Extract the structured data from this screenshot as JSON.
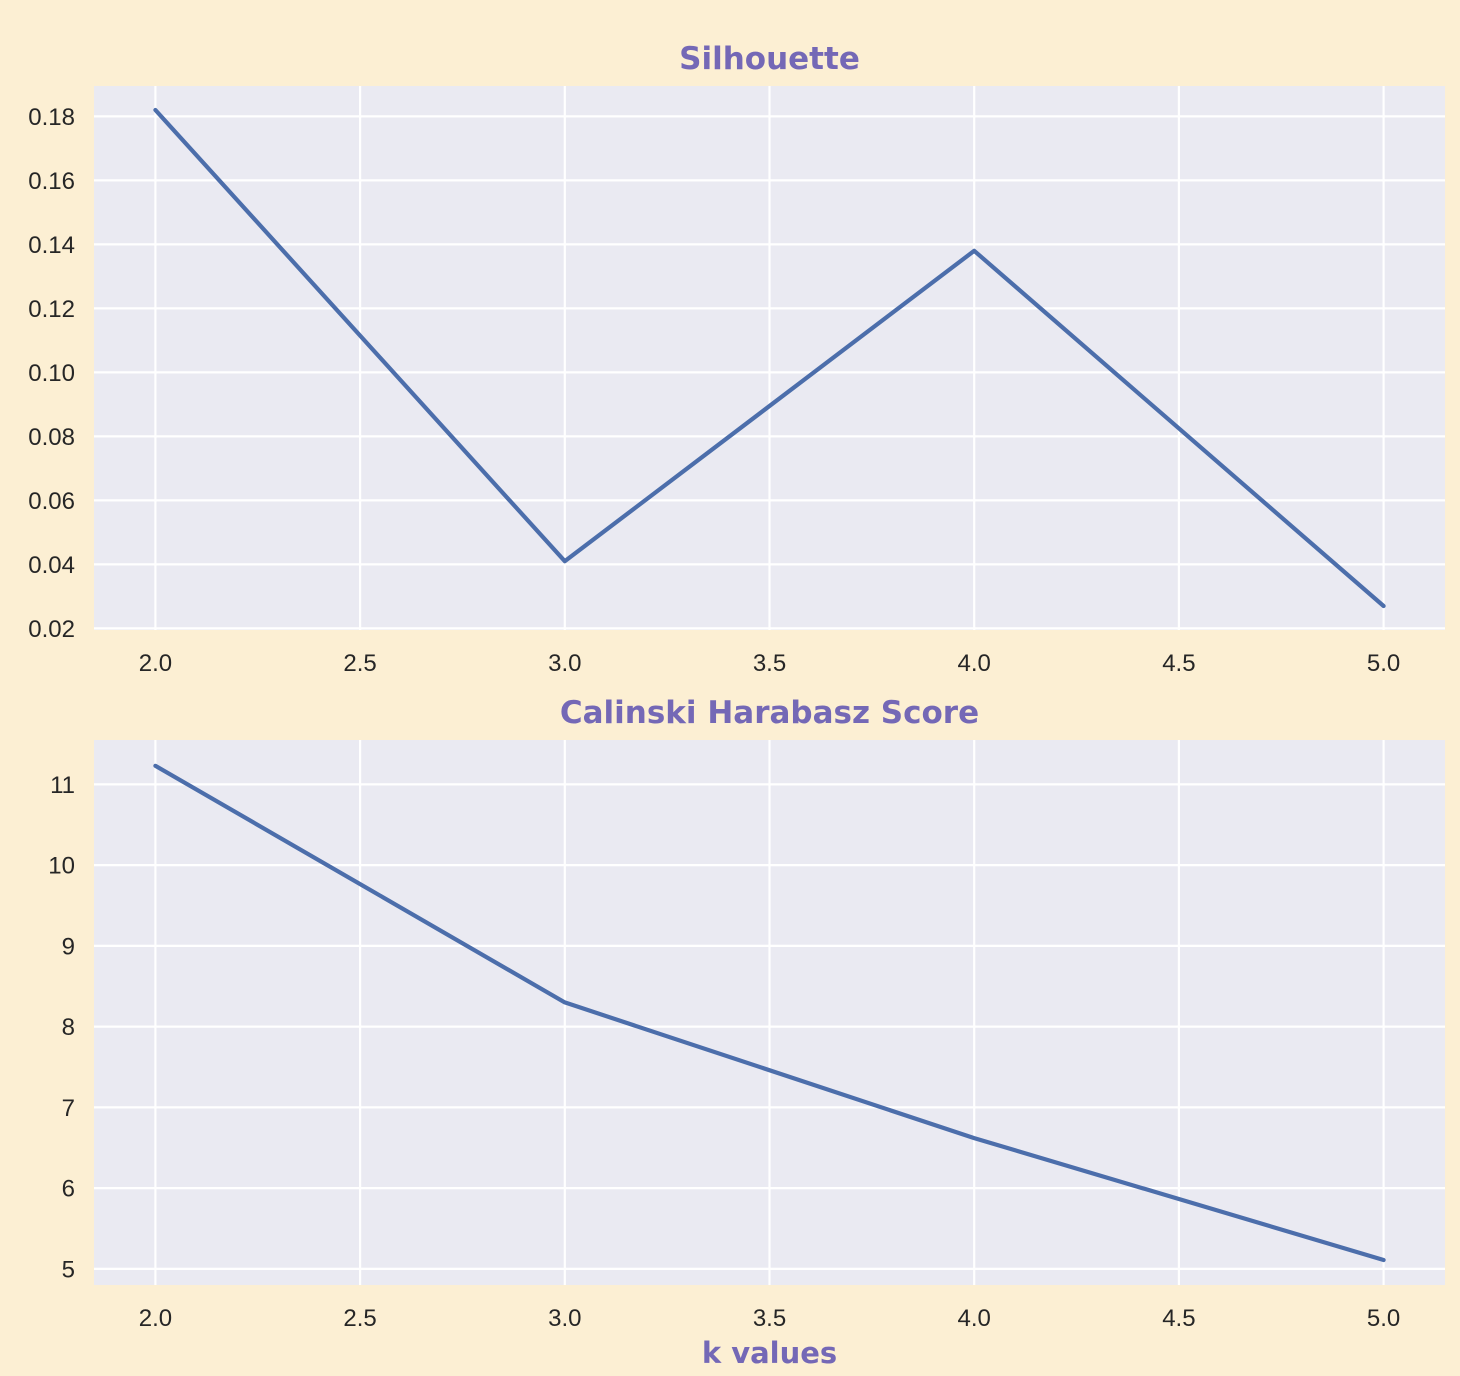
{
  "colors": {
    "figure_background": "#fcefd3",
    "axes_background": "#eaeaf2",
    "grid": "#ffffff",
    "line": "#4c6eab",
    "title": "#7468b6",
    "tick_text": "#262626"
  },
  "chart_data": [
    {
      "type": "line",
      "title": "Silhouette",
      "xlabel": "",
      "ylabel": "",
      "x": [
        2,
        3,
        4,
        5
      ],
      "series": [
        {
          "values": [
            0.182,
            0.041,
            0.138,
            0.027
          ]
        }
      ],
      "xlim": [
        1.85,
        5.15
      ],
      "ylim": [
        0.0195,
        0.1895
      ],
      "xticks": [
        2.0,
        2.5,
        3.0,
        3.5,
        4.0,
        4.5,
        5.0
      ],
      "xtick_labels": [
        "2.0",
        "2.5",
        "3.0",
        "3.5",
        "4.0",
        "4.5",
        "5.0"
      ],
      "yticks": [
        0.02,
        0.04,
        0.06,
        0.08,
        0.1,
        0.12,
        0.14,
        0.16,
        0.18
      ],
      "ytick_labels": [
        "0.02",
        "0.04",
        "0.06",
        "0.08",
        "0.10",
        "0.12",
        "0.14",
        "0.16",
        "0.18"
      ],
      "grid": true,
      "legend": false
    },
    {
      "type": "line",
      "title": "Calinski Harabasz Score",
      "xlabel": "k values",
      "ylabel": "",
      "x": [
        2,
        3,
        4,
        5
      ],
      "series": [
        {
          "values": [
            11.23,
            8.3,
            6.62,
            5.11
          ]
        }
      ],
      "xlim": [
        1.85,
        5.15
      ],
      "ylim": [
        4.8,
        11.55
      ],
      "xticks": [
        2.0,
        2.5,
        3.0,
        3.5,
        4.0,
        4.5,
        5.0
      ],
      "xtick_labels": [
        "2.0",
        "2.5",
        "3.0",
        "3.5",
        "4.0",
        "4.5",
        "5.0"
      ],
      "yticks": [
        5,
        6,
        7,
        8,
        9,
        10,
        11
      ],
      "ytick_labels": [
        "5",
        "6",
        "7",
        "8",
        "9",
        "10",
        "11"
      ],
      "grid": true,
      "legend": false
    }
  ]
}
